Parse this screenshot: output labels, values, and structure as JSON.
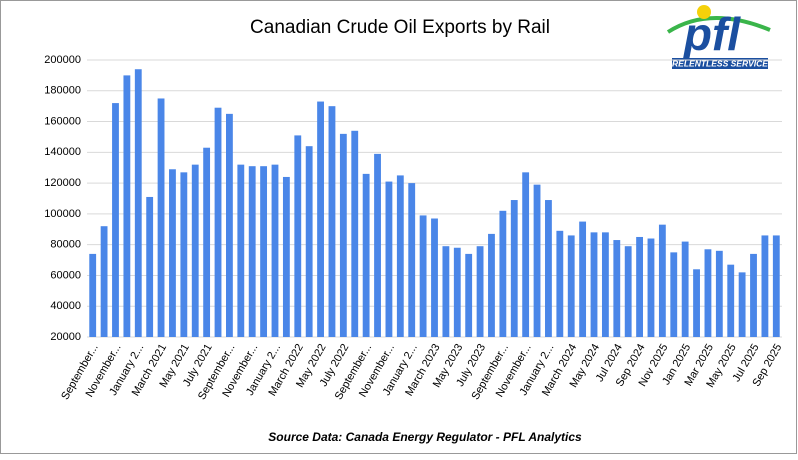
{
  "chart_data": {
    "type": "bar",
    "title": "Canadian Crude Oil Exports by Rail",
    "source": "Source Data: Canada Energy Regulator - PFL Analytics",
    "logo": {
      "mark": "pfl",
      "tagline": "RELENTLESS SERVICE"
    },
    "color": "#4a86e8",
    "grid": true,
    "categories": [
      "September...",
      null,
      "November...",
      null,
      "January 2...",
      null,
      "March 2021",
      null,
      "May 2021",
      null,
      "July 2021",
      null,
      "September...",
      null,
      "November...",
      null,
      "January 2...",
      null,
      "March 2022",
      null,
      "May 2022",
      null,
      "July 2022",
      null,
      "September...",
      null,
      "November...",
      null,
      "January 2...",
      null,
      "March 2023",
      null,
      "May 2023",
      null,
      "July 2023",
      null,
      "September...",
      null,
      "November...",
      null,
      "January 2...",
      null,
      "March 2024",
      null,
      "May 2024",
      null,
      "Jul 2024",
      null,
      "Sep 2024",
      null,
      "Nov 2025",
      null,
      "Jan 2025",
      null,
      "Mar 2025",
      null,
      "May 2025",
      null,
      "Jul 2025",
      null,
      "Sep 2025"
    ],
    "values": [
      74000,
      92000,
      172000,
      190000,
      194000,
      111000,
      175000,
      129000,
      127000,
      132000,
      143000,
      169000,
      165000,
      132000,
      131000,
      131000,
      132000,
      124000,
      151000,
      144000,
      173000,
      170000,
      152000,
      154000,
      126000,
      139000,
      121000,
      125000,
      120000,
      99000,
      97000,
      79000,
      78000,
      74000,
      79000,
      87000,
      102000,
      109000,
      127000,
      119000,
      109000,
      89000,
      86000,
      95000,
      88000,
      88000,
      83000,
      79000,
      85000,
      84000,
      93000,
      75000,
      82000,
      64000,
      77000,
      76000,
      67000,
      62000,
      74000,
      86000,
      86000
    ],
    "ylim": [
      20000,
      200000
    ],
    "yticks": [
      20000,
      40000,
      60000,
      80000,
      100000,
      120000,
      140000,
      160000,
      180000,
      200000
    ]
  }
}
